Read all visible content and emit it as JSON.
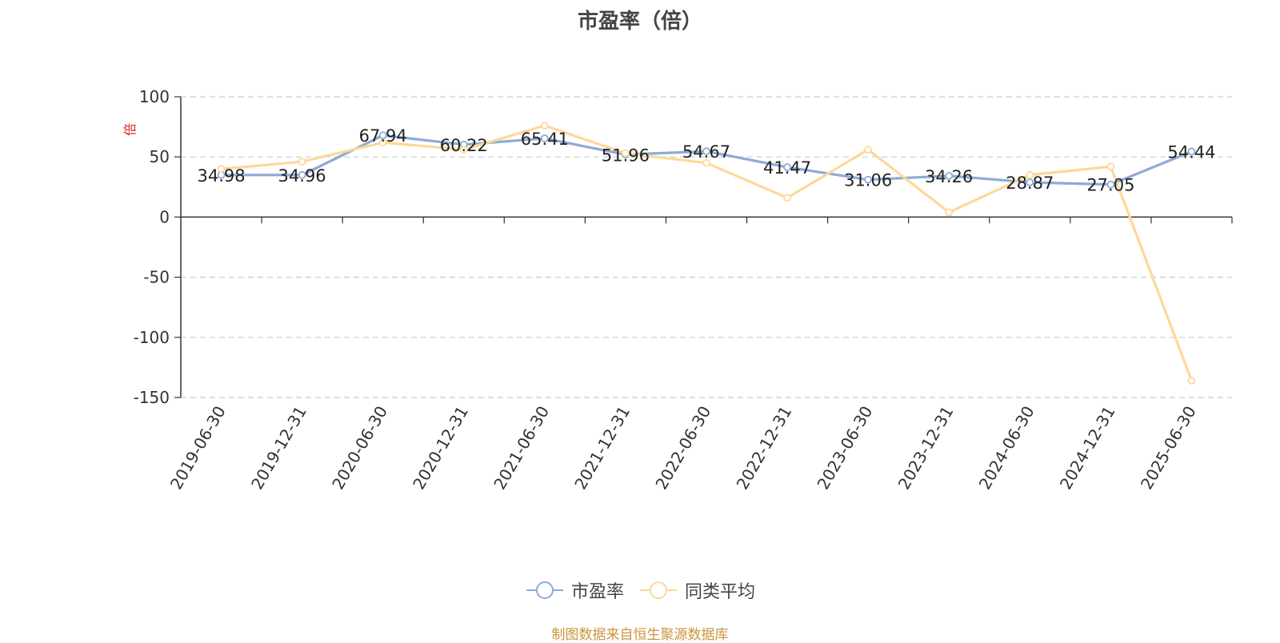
{
  "chart_data": {
    "type": "line",
    "title": "市盈率（倍）",
    "ylabel": "倍",
    "ylim": [
      -150,
      100
    ],
    "yticks": [
      100,
      50,
      0,
      -50,
      -100,
      -150
    ],
    "grid": true,
    "legend_position": "bottom",
    "categories": [
      "2019-06-30",
      "2019-12-31",
      "2020-06-30",
      "2020-12-31",
      "2021-06-30",
      "2021-12-31",
      "2022-06-30",
      "2022-12-31",
      "2023-06-30",
      "2023-12-31",
      "2024-06-30",
      "2024-12-31",
      "2025-06-30"
    ],
    "series": [
      {
        "name": "市盈率",
        "color": "#8eaad6",
        "values": [
          34.98,
          34.96,
          67.94,
          60.22,
          65.41,
          51.96,
          54.67,
          41.47,
          31.06,
          34.26,
          28.87,
          27.05,
          54.44
        ],
        "labels": [
          "34.98",
          "34.96",
          "67.94",
          "60.22",
          "65.41",
          "51.96",
          "54.67",
          "41.47",
          "31.06",
          "34.26",
          "28.87",
          "27.05",
          "54.44"
        ]
      },
      {
        "name": "同类平均",
        "color": "#fcd999",
        "values": [
          40,
          46,
          62,
          56,
          76,
          53,
          45,
          16,
          56,
          4,
          35,
          42,
          -136
        ]
      }
    ]
  },
  "legend": {
    "items": [
      "市盈率",
      "同类平均"
    ]
  },
  "footer": "制图数据来自恒生聚源数据库"
}
